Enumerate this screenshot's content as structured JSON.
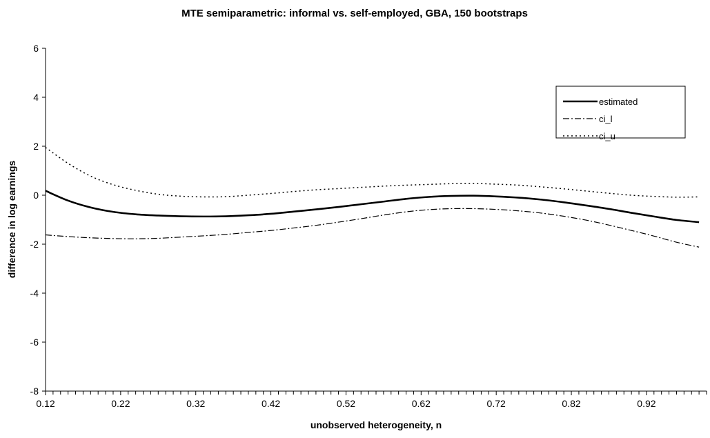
{
  "chart_data": {
    "type": "line",
    "title": "MTE semiparametric: informal vs. self-employed, GBA, 150 bootstraps",
    "xlabel": "unobserved heterogeneity, n",
    "ylabel": "difference in log earnings",
    "xlim": [
      0.12,
      1.0
    ],
    "ylim": [
      -8,
      6
    ],
    "xticks": [
      "0.12",
      "0.22",
      "0.32",
      "0.42",
      "0.52",
      "0.62",
      "0.72",
      "0.82",
      "0.92"
    ],
    "yticks": [
      "6",
      "4",
      "2",
      "0",
      "-2",
      "-4",
      "-6",
      "-8"
    ],
    "x": [
      0.12,
      0.15,
      0.18,
      0.21,
      0.24,
      0.27,
      0.3,
      0.33,
      0.36,
      0.39,
      0.42,
      0.45,
      0.48,
      0.51,
      0.54,
      0.57,
      0.6,
      0.63,
      0.66,
      0.69,
      0.72,
      0.75,
      0.78,
      0.81,
      0.84,
      0.87,
      0.9,
      0.93,
      0.96,
      0.99
    ],
    "series": [
      {
        "name": "estimated",
        "style": "solid",
        "values": [
          0.18,
          -0.22,
          -0.5,
          -0.68,
          -0.78,
          -0.83,
          -0.86,
          -0.87,
          -0.86,
          -0.82,
          -0.76,
          -0.67,
          -0.58,
          -0.48,
          -0.37,
          -0.26,
          -0.15,
          -0.07,
          -0.03,
          -0.02,
          -0.05,
          -0.1,
          -0.18,
          -0.29,
          -0.42,
          -0.56,
          -0.72,
          -0.87,
          -1.01,
          -1.1
        ]
      },
      {
        "name": "ci_l",
        "style": "dashdot",
        "values": [
          -1.62,
          -1.69,
          -1.74,
          -1.77,
          -1.78,
          -1.76,
          -1.71,
          -1.66,
          -1.6,
          -1.52,
          -1.44,
          -1.34,
          -1.23,
          -1.1,
          -0.96,
          -0.81,
          -0.68,
          -0.59,
          -0.55,
          -0.55,
          -0.58,
          -0.64,
          -0.73,
          -0.86,
          -1.02,
          -1.22,
          -1.44,
          -1.67,
          -1.92,
          -2.12
        ]
      },
      {
        "name": "ci_u",
        "style": "dotted",
        "values": [
          1.95,
          1.3,
          0.78,
          0.43,
          0.2,
          0.04,
          -0.04,
          -0.07,
          -0.06,
          0.0,
          0.07,
          0.15,
          0.22,
          0.27,
          0.32,
          0.37,
          0.41,
          0.44,
          0.47,
          0.48,
          0.45,
          0.41,
          0.34,
          0.26,
          0.17,
          0.08,
          0.0,
          -0.05,
          -0.08,
          -0.07
        ]
      }
    ],
    "legend_position": "top-right",
    "grid": false
  }
}
